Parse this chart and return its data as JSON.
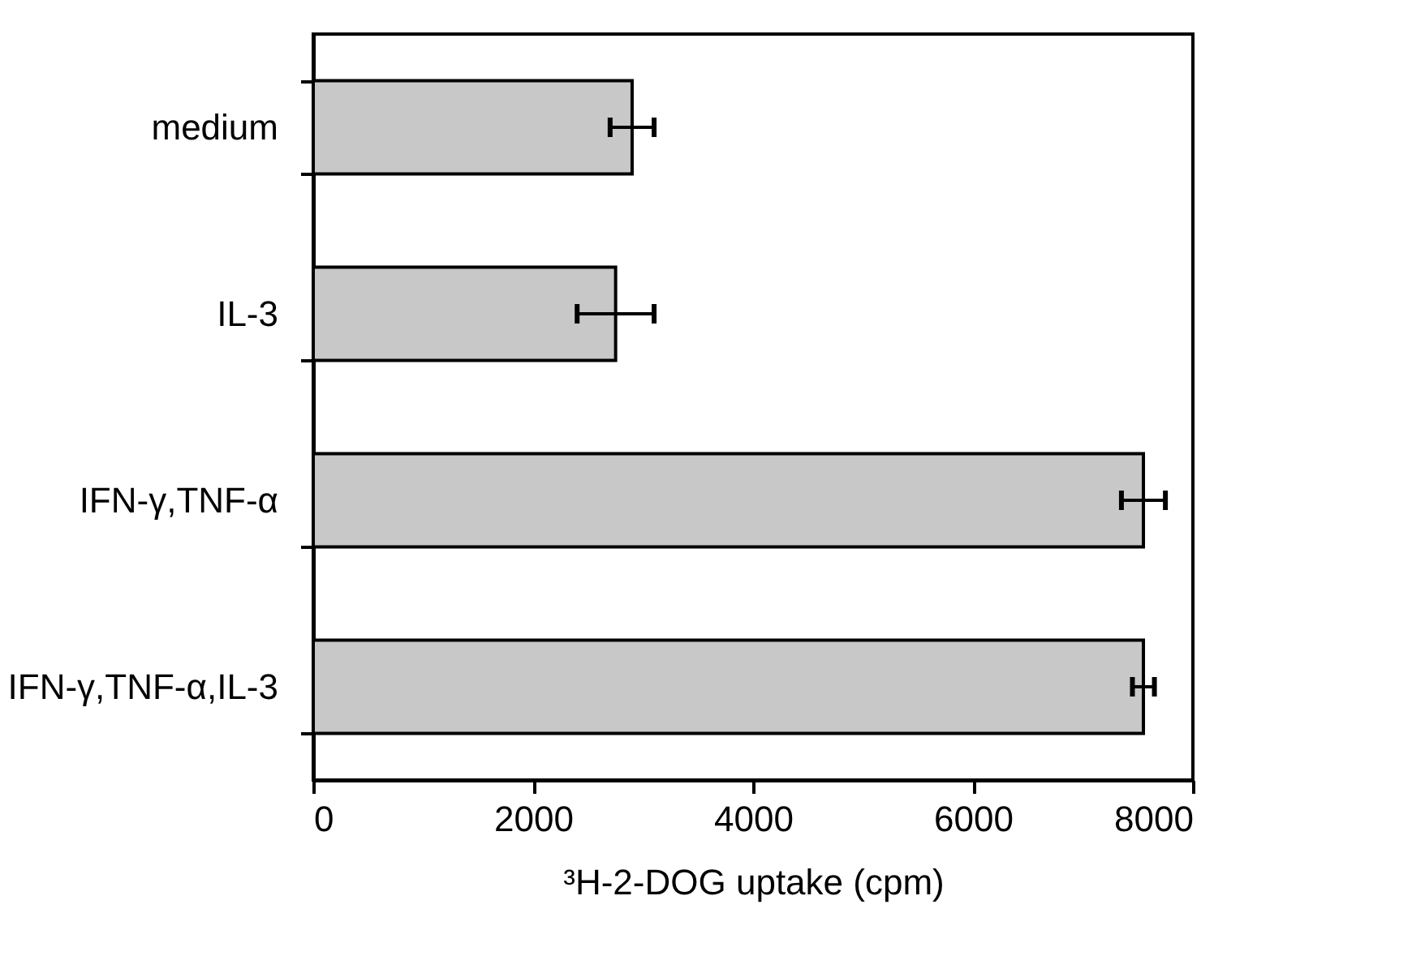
{
  "chart_data": {
    "type": "bar",
    "orientation": "horizontal",
    "categories": [
      "medium",
      "IL-3",
      "IFN-γ,TNF-α",
      "IFN-γ,TNF-α,IL-3"
    ],
    "values": [
      2900,
      2750,
      7550,
      7550
    ],
    "errors": [
      200,
      350,
      200,
      100
    ],
    "color": "#c8c8c8",
    "xlabel": "³H-2-DOG uptake (cpm)",
    "xlim": [
      0,
      8000
    ],
    "xticks": [
      0,
      2000,
      4000,
      6000,
      8000
    ],
    "grid": false
  }
}
